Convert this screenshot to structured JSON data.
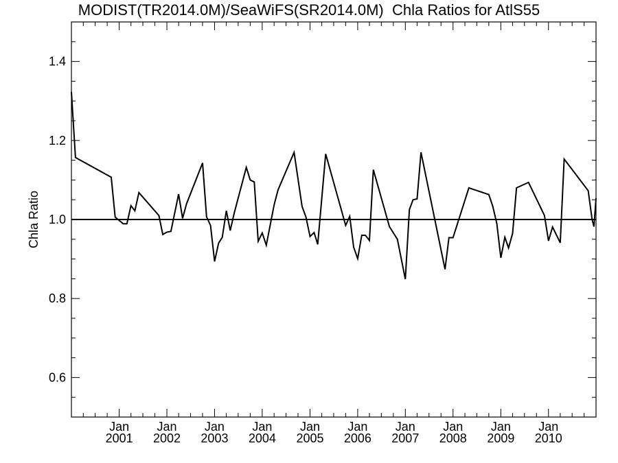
{
  "chart_data": {
    "type": "line",
    "title": "MODIST(TR2014.0M)/SeaWiFS(SR2014.0M)  Chla Ratios for AtlS55",
    "xlabel": "",
    "ylabel": "Chla Ratio",
    "ylim": [
      0.5,
      1.5
    ],
    "xlim": [
      "2000-01-01",
      "2010-12-31"
    ],
    "yticks": [
      "0.6",
      "0.8",
      "1.0",
      "1.2",
      "1.4"
    ],
    "xticks": [
      {
        "month": "Jan",
        "year": "2001",
        "date": "2001-01-01"
      },
      {
        "month": "Jan",
        "year": "2002",
        "date": "2002-01-01"
      },
      {
        "month": "Jan",
        "year": "2003",
        "date": "2003-01-01"
      },
      {
        "month": "Jan",
        "year": "2004",
        "date": "2004-01-01"
      },
      {
        "month": "Jan",
        "year": "2005",
        "date": "2005-01-01"
      },
      {
        "month": "Jan",
        "year": "2006",
        "date": "2006-01-01"
      },
      {
        "month": "Jan",
        "year": "2007",
        "date": "2007-01-01"
      },
      {
        "month": "Jan",
        "year": "2008",
        "date": "2008-01-01"
      },
      {
        "month": "Jan",
        "year": "2009",
        "date": "2009-01-01"
      },
      {
        "month": "Jan",
        "year": "2010",
        "date": "2010-01-01"
      }
    ],
    "reference_line": 1.0,
    "grid": false,
    "series": [
      {
        "points": [
          [
            "2000-01-01",
            1.323
          ],
          [
            "2000-02-01",
            1.157
          ],
          [
            "2000-11-01",
            1.107
          ],
          [
            "2000-12-01",
            1.006
          ],
          [
            "2001-02-01",
            0.989
          ],
          [
            "2001-03-01",
            0.989
          ],
          [
            "2001-04-01",
            1.035
          ],
          [
            "2001-05-01",
            1.022
          ],
          [
            "2001-06-01",
            1.068
          ],
          [
            "2001-11-01",
            1.01
          ],
          [
            "2001-12-01",
            0.962
          ],
          [
            "2002-01-01",
            0.968
          ],
          [
            "2002-02-01",
            0.97
          ],
          [
            "2002-04-01",
            1.064
          ],
          [
            "2002-05-01",
            1.003
          ],
          [
            "2002-06-01",
            1.04
          ],
          [
            "2002-10-01",
            1.143
          ],
          [
            "2002-11-01",
            1.007
          ],
          [
            "2002-12-01",
            0.985
          ],
          [
            "2003-01-01",
            0.894
          ],
          [
            "2003-02-01",
            0.94
          ],
          [
            "2003-03-01",
            0.955
          ],
          [
            "2003-04-01",
            1.022
          ],
          [
            "2003-05-01",
            0.972
          ],
          [
            "2003-06-01",
            1.017
          ],
          [
            "2003-09-01",
            1.132
          ],
          [
            "2003-10-01",
            1.1
          ],
          [
            "2003-11-01",
            1.095
          ],
          [
            "2003-12-01",
            0.945
          ],
          [
            "2004-01-01",
            0.966
          ],
          [
            "2004-02-01",
            0.935
          ],
          [
            "2004-04-01",
            1.037
          ],
          [
            "2004-05-01",
            1.075
          ],
          [
            "2004-09-01",
            1.17
          ],
          [
            "2004-11-01",
            1.033
          ],
          [
            "2004-12-01",
            1.006
          ],
          [
            "2005-01-01",
            0.957
          ],
          [
            "2005-02-01",
            0.967
          ],
          [
            "2005-03-01",
            0.937
          ],
          [
            "2005-05-01",
            1.166
          ],
          [
            "2005-10-01",
            0.985
          ],
          [
            "2005-11-01",
            1.008
          ],
          [
            "2005-12-01",
            0.93
          ],
          [
            "2006-01-01",
            0.901
          ],
          [
            "2006-02-01",
            0.96
          ],
          [
            "2006-03-01",
            0.96
          ],
          [
            "2006-04-01",
            0.947
          ],
          [
            "2006-05-01",
            1.126
          ],
          [
            "2006-09-01",
            0.982
          ],
          [
            "2006-11-01",
            0.95
          ],
          [
            "2007-01-01",
            0.849
          ],
          [
            "2007-02-01",
            1.025
          ],
          [
            "2007-03-01",
            1.05
          ],
          [
            "2007-04-01",
            1.052
          ],
          [
            "2007-05-01",
            1.17
          ],
          [
            "2007-11-01",
            0.874
          ],
          [
            "2007-12-01",
            0.954
          ],
          [
            "2008-01-01",
            0.954
          ],
          [
            "2008-05-01",
            1.08
          ],
          [
            "2008-10-01",
            1.063
          ],
          [
            "2008-11-01",
            1.033
          ],
          [
            "2008-12-01",
            0.99
          ],
          [
            "2009-01-01",
            0.903
          ],
          [
            "2009-02-01",
            0.955
          ],
          [
            "2009-03-01",
            0.928
          ],
          [
            "2009-04-01",
            0.965
          ],
          [
            "2009-05-01",
            1.08
          ],
          [
            "2009-08-01",
            1.094
          ],
          [
            "2009-12-01",
            1.01
          ],
          [
            "2010-01-01",
            0.946
          ],
          [
            "2010-02-01",
            0.981
          ],
          [
            "2010-04-01",
            0.941
          ],
          [
            "2010-05-01",
            1.153
          ],
          [
            "2010-11-01",
            1.073
          ],
          [
            "2010-12-01",
            1.0
          ],
          [
            "2010-12-15",
            0.982
          ],
          [
            "2010-12-31",
            1.054
          ]
        ]
      }
    ]
  }
}
